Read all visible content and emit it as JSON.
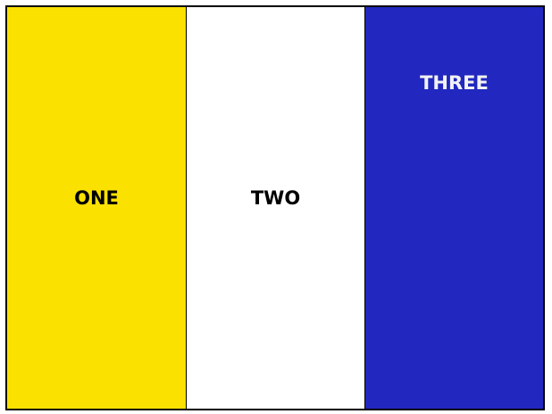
{
  "columns": [
    {
      "label": "ONE",
      "background": "#FAE100",
      "text_color": "#000000"
    },
    {
      "label": "TWO",
      "background": "#FFFFFF",
      "text_color": "#000000"
    },
    {
      "label": "THREE",
      "background": "#2127BF",
      "text_color": "#F2F2F2"
    }
  ],
  "border_color": "#000000"
}
